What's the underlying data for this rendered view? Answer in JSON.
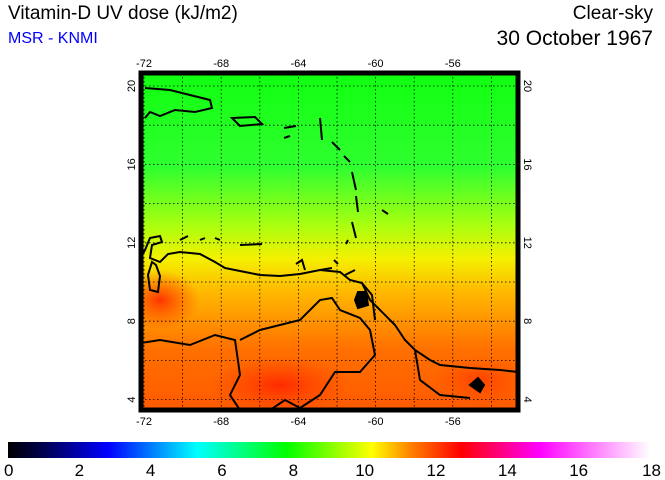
{
  "header": {
    "title": "Vitamin-D UV dose (kJ/m2)",
    "source": "MSR - KNMI",
    "sky": "Clear-sky",
    "date": "30 October 1967"
  },
  "map": {
    "lon_labels": [
      "-72",
      "-68",
      "-64",
      "-60",
      "-56"
    ],
    "lat_labels": [
      "20",
      "16",
      "12",
      "8",
      "4"
    ],
    "lon_values": [
      -72,
      -68,
      -64,
      -60,
      -56
    ],
    "lat_values": [
      20,
      16,
      12,
      8,
      4
    ]
  },
  "colorbar": {
    "labels": [
      "0",
      "2",
      "4",
      "6",
      "8",
      "10",
      "12",
      "14",
      "16",
      "18"
    ],
    "range": [
      0,
      18
    ],
    "stops": [
      {
        "v": 0,
        "c": "#000000"
      },
      {
        "v": 1,
        "c": "#000050"
      },
      {
        "v": 2.8,
        "c": "#0000ff"
      },
      {
        "v": 5.3,
        "c": "#00ffff"
      },
      {
        "v": 7.8,
        "c": "#00ff00"
      },
      {
        "v": 10.2,
        "c": "#ffff00"
      },
      {
        "v": 11.3,
        "c": "#ff8000"
      },
      {
        "v": 12.7,
        "c": "#ff0000"
      },
      {
        "v": 14.9,
        "c": "#ff00ff"
      },
      {
        "v": 18,
        "c": "#ffffff"
      }
    ]
  }
}
